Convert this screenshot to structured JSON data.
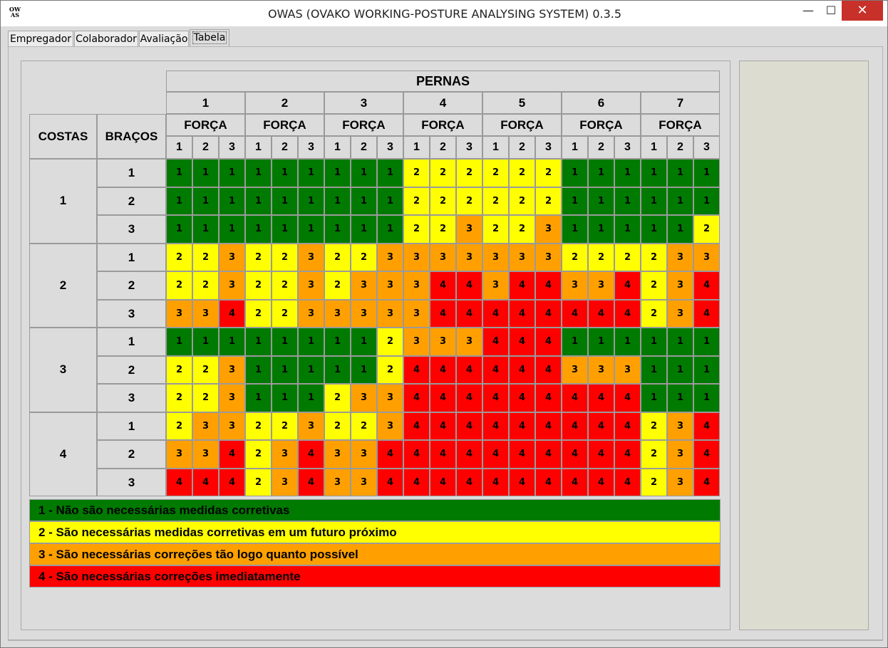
{
  "window": {
    "title": "OWAS (OVAKO WORKING-POSTURE ANALYSING SYSTEM) 0.3.5",
    "icon_text_line1": "OW",
    "icon_text_line2": "AS",
    "minimize_glyph": "—",
    "maximize_glyph": "☐",
    "close_glyph": "✕"
  },
  "tabs": [
    {
      "label": "Empregador",
      "active": false
    },
    {
      "label": "Colaborador",
      "active": false
    },
    {
      "label": "Avaliação",
      "active": false
    },
    {
      "label": "Tabela",
      "active": true
    }
  ],
  "table": {
    "pernas_label": "PERNAS",
    "forca_label": "FORÇA",
    "costas_label": "COSTAS",
    "bracos_label": "BRAÇOS",
    "pernas_values": [
      "1",
      "2",
      "3",
      "4",
      "5",
      "6",
      "7"
    ],
    "forca_values": [
      "1",
      "2",
      "3"
    ],
    "costas_values": [
      "1",
      "2",
      "3",
      "4"
    ],
    "bracos_values": [
      "1",
      "2",
      "3"
    ],
    "rows": [
      [
        1,
        1,
        1,
        1,
        1,
        1,
        1,
        1,
        1,
        2,
        2,
        2,
        2,
        2,
        2,
        1,
        1,
        1,
        1,
        1,
        1
      ],
      [
        1,
        1,
        1,
        1,
        1,
        1,
        1,
        1,
        1,
        2,
        2,
        2,
        2,
        2,
        2,
        1,
        1,
        1,
        1,
        1,
        1
      ],
      [
        1,
        1,
        1,
        1,
        1,
        1,
        1,
        1,
        1,
        2,
        2,
        3,
        2,
        2,
        3,
        1,
        1,
        1,
        1,
        1,
        2
      ],
      [
        2,
        2,
        3,
        2,
        2,
        3,
        2,
        2,
        3,
        3,
        3,
        3,
        3,
        3,
        3,
        2,
        2,
        2,
        2,
        3,
        3
      ],
      [
        2,
        2,
        3,
        2,
        2,
        3,
        2,
        3,
        3,
        3,
        4,
        4,
        3,
        4,
        4,
        3,
        3,
        4,
        2,
        3,
        4
      ],
      [
        3,
        3,
        4,
        2,
        2,
        3,
        3,
        3,
        3,
        3,
        4,
        4,
        4,
        4,
        4,
        4,
        4,
        4,
        2,
        3,
        4
      ],
      [
        1,
        1,
        1,
        1,
        1,
        1,
        1,
        1,
        2,
        3,
        3,
        3,
        4,
        4,
        4,
        1,
        1,
        1,
        1,
        1,
        1
      ],
      [
        2,
        2,
        3,
        1,
        1,
        1,
        1,
        1,
        2,
        4,
        4,
        4,
        4,
        4,
        4,
        3,
        3,
        3,
        1,
        1,
        1
      ],
      [
        2,
        2,
        3,
        1,
        1,
        1,
        2,
        3,
        3,
        4,
        4,
        4,
        4,
        4,
        4,
        4,
        4,
        4,
        1,
        1,
        1
      ],
      [
        2,
        3,
        3,
        2,
        2,
        3,
        2,
        2,
        3,
        4,
        4,
        4,
        4,
        4,
        4,
        4,
        4,
        4,
        2,
        3,
        4
      ],
      [
        3,
        3,
        4,
        2,
        3,
        4,
        3,
        3,
        4,
        4,
        4,
        4,
        4,
        4,
        4,
        4,
        4,
        4,
        2,
        3,
        4
      ],
      [
        4,
        4,
        4,
        2,
        3,
        4,
        3,
        3,
        4,
        4,
        4,
        4,
        4,
        4,
        4,
        4,
        4,
        4,
        2,
        3,
        4
      ]
    ]
  },
  "colors": {
    "1": "#007a00",
    "2": "#ffff00",
    "3": "#ffa000",
    "4": "#ff0000"
  },
  "legend": [
    {
      "level": "1",
      "text": "1 - Não são necessárias medidas corretivas"
    },
    {
      "level": "2",
      "text": "2 - São necessárias medidas corretivas em um futuro próximo"
    },
    {
      "level": "3",
      "text": "3 - São necessárias correções tão logo quanto possível"
    },
    {
      "level": "4",
      "text": "4 - São necessárias correções imediatamente"
    }
  ]
}
